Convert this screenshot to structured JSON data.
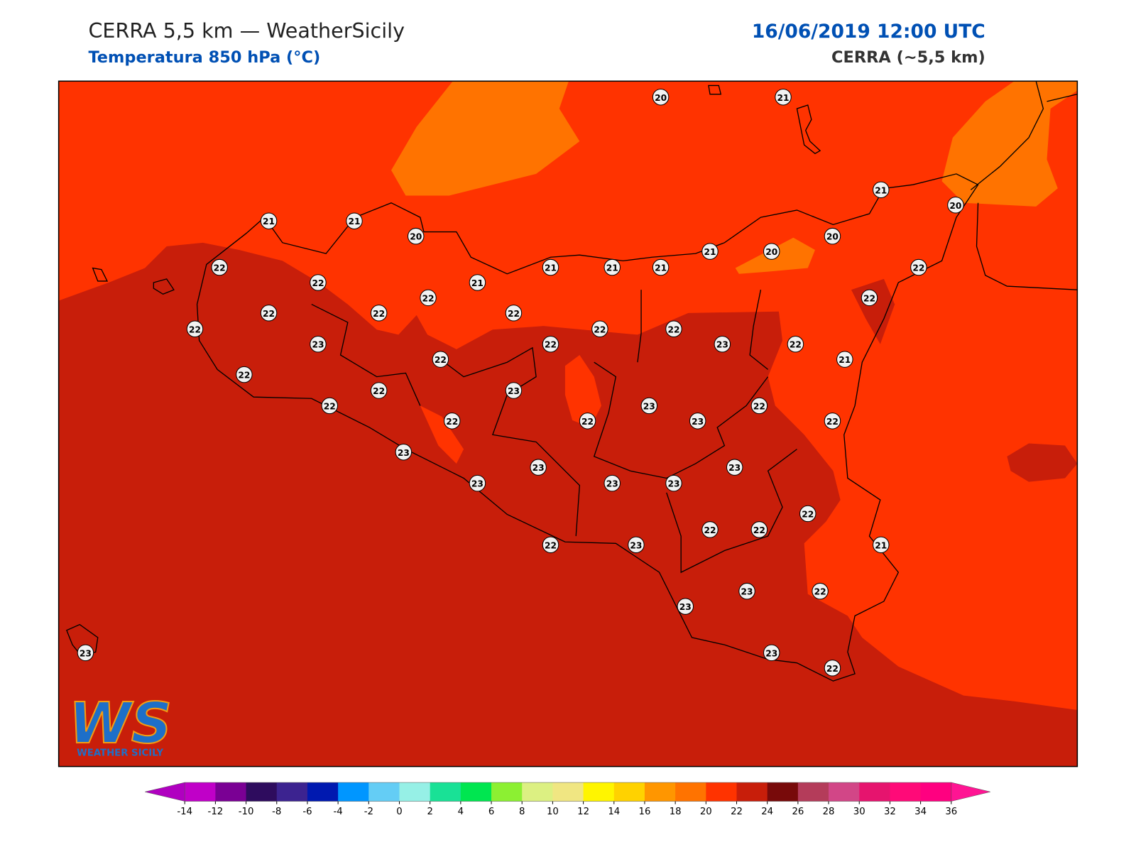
{
  "header": {
    "title": "CERRA 5,5 km — WeatherSicily",
    "subtitle": "Temperatura 850 hPa (°C)",
    "datetime": "16/06/2019 12:00 UTC",
    "model": "CERRA (~5,5 km)"
  },
  "stations": [
    20,
    21,
    21,
    20,
    21,
    21,
    20,
    20,
    21,
    20,
    22,
    21,
    21,
    21,
    22,
    22,
    21,
    22,
    22,
    22,
    22,
    22,
    22,
    22,
    22,
    23,
    22,
    23,
    22,
    22,
    21,
    22,
    22,
    23,
    22,
    23,
    22,
    22,
    22,
    23,
    22,
    23,
    23,
    23,
    23,
    23,
    23,
    22,
    22,
    22,
    22,
    23,
    21,
    23,
    22,
    23,
    23,
    23,
    22
  ],
  "colorbar": {
    "ticks": [
      -14,
      -12,
      -10,
      -8,
      -6,
      -4,
      -2,
      0,
      2,
      4,
      6,
      8,
      10,
      12,
      14,
      16,
      18,
      20,
      22,
      24,
      26,
      28,
      30,
      32,
      34,
      36
    ],
    "colors": [
      "#c000c8",
      "#7a0094",
      "#2e0c5e",
      "#3c2390",
      "#0019b0",
      "#0096ff",
      "#64cdf5",
      "#96f0e6",
      "#19e196",
      "#00e650",
      "#8cf032",
      "#dcf082",
      "#f0e682",
      "#fff500",
      "#ffd200",
      "#ff9600",
      "#ff7300",
      "#ff3300",
      "#c81e0a",
      "#780a0a",
      "#b43c5a",
      "#d24687",
      "#e6146e",
      "#ff0a78",
      "#ff0080"
    ],
    "under": "#b000c0",
    "over": "#ff1493"
  },
  "logo": {
    "mark": "WS",
    "text": "WEATHER SICILY"
  }
}
